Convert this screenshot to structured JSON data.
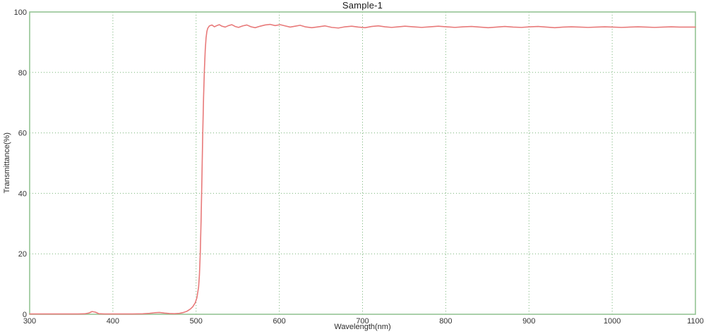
{
  "page": {
    "background": "#ffffff"
  },
  "style": {
    "plot_background": "#ffffff",
    "border_color": "#94c594",
    "grid_color": "#77b377",
    "line_color": "#e87a7a",
    "text_color": "#2b2b2b",
    "tick_label_color": "#333333"
  },
  "chart_data": {
    "type": "line",
    "title": "Sample-1",
    "xlabel": "Wavelength(nm)",
    "ylabel": "Transmittance(%)",
    "xlim": [
      300,
      1100
    ],
    "ylim": [
      0,
      100
    ],
    "xticks": [
      300,
      400,
      500,
      600,
      700,
      800,
      900,
      1000,
      1100
    ],
    "yticks": [
      0,
      20,
      40,
      60,
      80,
      100
    ],
    "grid": true,
    "grid_style": "dotted",
    "legend_position": "none",
    "description": "Long-pass optical filter transmittance spectrum: ~0% below 500nm, sharp cut-on near 505-510nm, ~95% plateau with small ripples up to 1100nm",
    "series": [
      {
        "name": "Sample-1",
        "color": "#e87a7a",
        "points": [
          [
            300,
            0.1
          ],
          [
            315,
            0.1
          ],
          [
            330,
            0.1
          ],
          [
            345,
            0.1
          ],
          [
            358,
            0.1
          ],
          [
            366,
            0.15
          ],
          [
            371,
            0.4
          ],
          [
            375,
            0.9
          ],
          [
            379,
            0.7
          ],
          [
            383,
            0.2
          ],
          [
            390,
            0.1
          ],
          [
            400,
            0.1
          ],
          [
            412,
            0.1
          ],
          [
            424,
            0.1
          ],
          [
            436,
            0.15
          ],
          [
            444,
            0.3
          ],
          [
            450,
            0.5
          ],
          [
            456,
            0.6
          ],
          [
            462,
            0.4
          ],
          [
            468,
            0.25
          ],
          [
            474,
            0.2
          ],
          [
            480,
            0.3
          ],
          [
            485,
            0.6
          ],
          [
            489,
            1.0
          ],
          [
            493,
            1.7
          ],
          [
            496,
            2.5
          ],
          [
            499,
            3.8
          ],
          [
            501,
            5.5
          ],
          [
            503,
            9
          ],
          [
            504,
            13
          ],
          [
            505,
            20
          ],
          [
            506,
            31
          ],
          [
            507,
            45
          ],
          [
            508,
            60
          ],
          [
            509,
            72
          ],
          [
            510,
            81
          ],
          [
            511,
            87.5
          ],
          [
            512,
            91.5
          ],
          [
            513,
            93.6
          ],
          [
            514,
            94.6
          ],
          [
            516,
            95.4
          ],
          [
            519,
            95.7
          ],
          [
            522,
            95.1
          ],
          [
            525,
            95.5
          ],
          [
            528,
            95.8
          ],
          [
            531,
            95.3
          ],
          [
            535,
            95.0
          ],
          [
            539,
            95.5
          ],
          [
            543,
            95.8
          ],
          [
            547,
            95.2
          ],
          [
            551,
            94.9
          ],
          [
            556,
            95.4
          ],
          [
            561,
            95.7
          ],
          [
            566,
            95.1
          ],
          [
            571,
            94.8
          ],
          [
            577,
            95.3
          ],
          [
            583,
            95.7
          ],
          [
            589,
            95.9
          ],
          [
            595,
            95.5
          ],
          [
            601,
            95.8
          ],
          [
            607,
            95.4
          ],
          [
            613,
            95.0
          ],
          [
            619,
            95.3
          ],
          [
            625,
            95.6
          ],
          [
            631,
            95.1
          ],
          [
            639,
            94.8
          ],
          [
            647,
            95.1
          ],
          [
            655,
            95.4
          ],
          [
            663,
            94.9
          ],
          [
            671,
            94.7
          ],
          [
            679,
            95.1
          ],
          [
            687,
            95.3
          ],
          [
            695,
            95.0
          ],
          [
            703,
            94.8
          ],
          [
            711,
            95.2
          ],
          [
            719,
            95.4
          ],
          [
            727,
            95.1
          ],
          [
            735,
            94.9
          ],
          [
            743,
            95.1
          ],
          [
            751,
            95.3
          ],
          [
            761,
            95.1
          ],
          [
            771,
            94.9
          ],
          [
            781,
            95.1
          ],
          [
            791,
            95.3
          ],
          [
            801,
            95.1
          ],
          [
            811,
            94.9
          ],
          [
            821,
            95.1
          ],
          [
            831,
            95.2
          ],
          [
            841,
            95.0
          ],
          [
            851,
            94.8
          ],
          [
            861,
            95.0
          ],
          [
            871,
            95.2
          ],
          [
            881,
            95.0
          ],
          [
            891,
            94.9
          ],
          [
            901,
            95.1
          ],
          [
            911,
            95.2
          ],
          [
            921,
            95.0
          ],
          [
            931,
            94.8
          ],
          [
            941,
            95.0
          ],
          [
            951,
            95.1
          ],
          [
            961,
            95.0
          ],
          [
            971,
            94.9
          ],
          [
            981,
            95.0
          ],
          [
            991,
            95.1
          ],
          [
            1001,
            95.0
          ],
          [
            1011,
            94.9
          ],
          [
            1021,
            95.0
          ],
          [
            1031,
            95.1
          ],
          [
            1041,
            95.0
          ],
          [
            1051,
            94.9
          ],
          [
            1061,
            95.0
          ],
          [
            1071,
            95.1
          ],
          [
            1081,
            95.0
          ],
          [
            1091,
            95.0
          ],
          [
            1100,
            95.0
          ]
        ]
      }
    ]
  }
}
